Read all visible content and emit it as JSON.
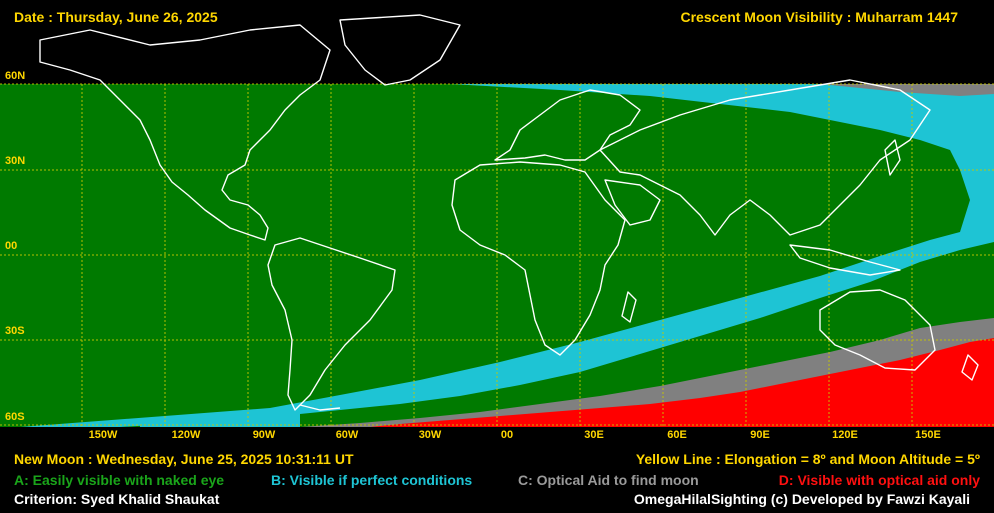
{
  "header": {
    "date_text": "Date : Thursday, June 26, 2025",
    "title_text": "Crescent Moon Visibility : Muharram  1447"
  },
  "map": {
    "lat_labels": [
      "60N",
      "30N",
      "00",
      "30S",
      "60S"
    ],
    "lon_labels": [
      "150W",
      "120W",
      "90W",
      "60W",
      "30W",
      "00",
      "30E",
      "60E",
      "90E",
      "120E",
      "150E"
    ],
    "zone_colors": {
      "A": "#007a00",
      "B": "#1ec4d4",
      "C": "#808080",
      "D": "#ff0000",
      "not_visible": "#000000",
      "coastline": "#ffffff",
      "grid": "#c8c800"
    }
  },
  "footer": {
    "new_moon_text": "New Moon : Wednesday, June 25, 2025  10:31:11  UT",
    "yellow_line_text": "Yellow Line : Elongation = 8º  and Moon Altitude = 5º",
    "legend": {
      "a": "A: Easily visible with naked eye",
      "b": "B: Visible if perfect conditions",
      "c": "C: Optical Aid to find moon",
      "d": "D: Visible with optical aid only"
    },
    "criterion_text": "Criterion: Syed Khalid Shaukat",
    "credit_text": "OmegaHilalSighting  (c)  Developed by Fawzi Kayali"
  }
}
